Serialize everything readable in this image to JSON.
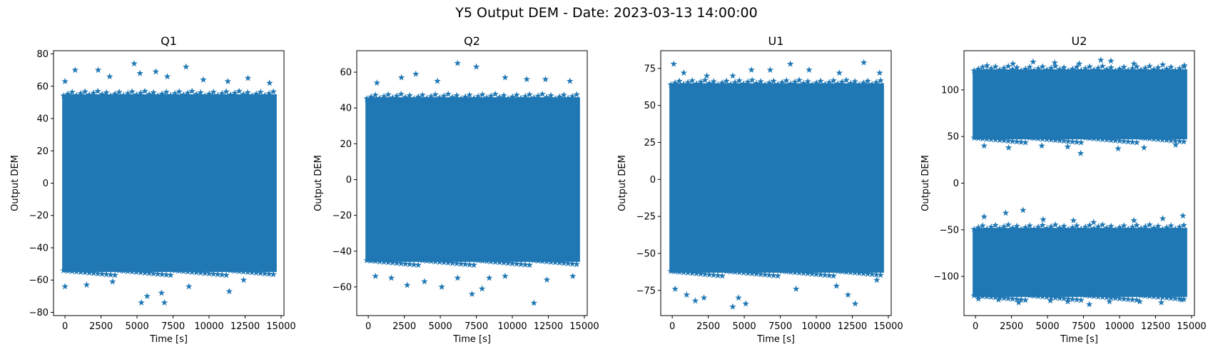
{
  "figure": {
    "suptitle": "Y5 Output DEM - Date: 2023-03-13 14:00:00",
    "marker_color": "#1f77b4"
  },
  "chart_data": [
    {
      "type": "scatter",
      "title": "Q1",
      "xlabel": "Time [s]",
      "ylabel": "Output DEM",
      "xlim": [
        -800,
        15200
      ],
      "ylim": [
        -82,
        82
      ],
      "xticks": [
        0,
        2500,
        5000,
        7500,
        10000,
        12500,
        15000
      ],
      "yticks": [
        -80,
        -60,
        -40,
        -20,
        0,
        20,
        40,
        60,
        80
      ],
      "marker": "star",
      "series": [
        {
          "band": {
            "x": [
              0,
              14500
            ],
            "y": [
              -55,
              55
            ]
          },
          "outliers": [
            [
              0,
              63
            ],
            [
              700,
              70
            ],
            [
              2300,
              70
            ],
            [
              3100,
              66
            ],
            [
              4800,
              74
            ],
            [
              5200,
              68
            ],
            [
              6300,
              69
            ],
            [
              7100,
              66
            ],
            [
              8400,
              72
            ],
            [
              9600,
              64
            ],
            [
              11300,
              63
            ],
            [
              12700,
              65
            ],
            [
              14200,
              62
            ],
            [
              0,
              -64
            ],
            [
              1500,
              -63
            ],
            [
              3300,
              -61
            ],
            [
              5300,
              -74
            ],
            [
              5700,
              -70
            ],
            [
              6700,
              -68
            ],
            [
              6900,
              -74
            ],
            [
              8600,
              -64
            ],
            [
              11400,
              -67
            ],
            [
              12400,
              -60
            ]
          ]
        }
      ]
    },
    {
      "type": "scatter",
      "title": "Q2",
      "xlabel": "Time [s]",
      "ylabel": "Output DEM",
      "xlim": [
        -800,
        15200
      ],
      "ylim": [
        -76,
        72
      ],
      "xticks": [
        0,
        2500,
        5000,
        7500,
        10000,
        12500,
        15000
      ],
      "yticks": [
        -60,
        -40,
        -20,
        0,
        20,
        40,
        60
      ],
      "marker": "star",
      "series": [
        {
          "band": {
            "x": [
              0,
              14500
            ],
            "y": [
              -46,
              46
            ]
          },
          "outliers": [
            [
              600,
              54
            ],
            [
              2300,
              57
            ],
            [
              3300,
              59
            ],
            [
              4800,
              55
            ],
            [
              6200,
              65
            ],
            [
              7500,
              63
            ],
            [
              9500,
              57
            ],
            [
              11000,
              56
            ],
            [
              12300,
              56
            ],
            [
              14000,
              55
            ],
            [
              500,
              -54
            ],
            [
              1600,
              -55
            ],
            [
              2700,
              -59
            ],
            [
              3900,
              -57
            ],
            [
              5100,
              -60
            ],
            [
              6200,
              -55
            ],
            [
              7200,
              -64
            ],
            [
              7900,
              -61
            ],
            [
              8400,
              -55
            ],
            [
              9500,
              -54
            ],
            [
              11500,
              -69
            ],
            [
              12400,
              -56
            ],
            [
              14200,
              -54
            ]
          ]
        }
      ]
    },
    {
      "type": "scatter",
      "title": "U1",
      "xlabel": "Time [s]",
      "ylabel": "Output DEM",
      "xlim": [
        -800,
        15200
      ],
      "ylim": [
        -92,
        87
      ],
      "xticks": [
        0,
        2500,
        5000,
        7500,
        10000,
        12500,
        15000
      ],
      "yticks": [
        -75,
        -50,
        -25,
        0,
        25,
        50,
        75
      ],
      "marker": "star",
      "series": [
        {
          "band": {
            "x": [
              0,
              14500
            ],
            "y": [
              -63,
              65
            ]
          },
          "outliers": [
            [
              100,
              78
            ],
            [
              800,
              72
            ],
            [
              2400,
              70
            ],
            [
              4200,
              70
            ],
            [
              5500,
              74
            ],
            [
              6800,
              74
            ],
            [
              8200,
              78
            ],
            [
              9500,
              74
            ],
            [
              11600,
              72
            ],
            [
              13300,
              79
            ],
            [
              14400,
              72
            ],
            [
              200,
              -74
            ],
            [
              1000,
              -78
            ],
            [
              1600,
              -82
            ],
            [
              2200,
              -80
            ],
            [
              4200,
              -86
            ],
            [
              4600,
              -80
            ],
            [
              5100,
              -84
            ],
            [
              8600,
              -74
            ],
            [
              11400,
              -72
            ],
            [
              12200,
              -78
            ],
            [
              12700,
              -84
            ],
            [
              14200,
              -68
            ]
          ]
        }
      ]
    },
    {
      "type": "scatter",
      "title": "U2",
      "xlabel": "Time [s]",
      "ylabel": "Output DEM",
      "xlim": [
        -800,
        15200
      ],
      "ylim": [
        -142,
        142
      ],
      "xticks": [
        0,
        2500,
        5000,
        7500,
        10000,
        12500,
        15000
      ],
      "yticks": [
        -100,
        -50,
        0,
        50,
        100
      ],
      "marker": "star",
      "series": [
        {
          "band": {
            "x": [
              0,
              14500
            ],
            "y": [
              47,
              122
            ]
          },
          "outliers": [
            [
              800,
              126
            ],
            [
              2600,
              128
            ],
            [
              4000,
              130
            ],
            [
              5500,
              129
            ],
            [
              7200,
              128
            ],
            [
              8700,
              132
            ],
            [
              9400,
              131
            ],
            [
              11000,
              128
            ],
            [
              13000,
              127
            ],
            [
              14500,
              126
            ],
            [
              600,
              40
            ],
            [
              2300,
              38
            ],
            [
              4600,
              40
            ],
            [
              6400,
              39
            ],
            [
              7300,
              32
            ],
            [
              9900,
              37
            ],
            [
              11700,
              38
            ],
            [
              13900,
              41
            ]
          ]
        },
        {
          "band": {
            "x": [
              0,
              14500
            ],
            "y": [
              -122,
              -48
            ]
          },
          "outliers": [
            [
              600,
              -36
            ],
            [
              2100,
              -32
            ],
            [
              3300,
              -29
            ],
            [
              4700,
              -39
            ],
            [
              6800,
              -40
            ],
            [
              8200,
              -42
            ],
            [
              11000,
              -40
            ],
            [
              13000,
              -38
            ],
            [
              14400,
              -35
            ],
            [
              200,
              -124
            ],
            [
              1600,
              -125
            ],
            [
              3000,
              -128
            ],
            [
              5200,
              -126
            ],
            [
              6400,
              -127
            ],
            [
              7900,
              -130
            ],
            [
              9300,
              -127
            ],
            [
              11400,
              -127
            ],
            [
              12900,
              -128
            ],
            [
              14300,
              -125
            ]
          ]
        }
      ]
    }
  ]
}
